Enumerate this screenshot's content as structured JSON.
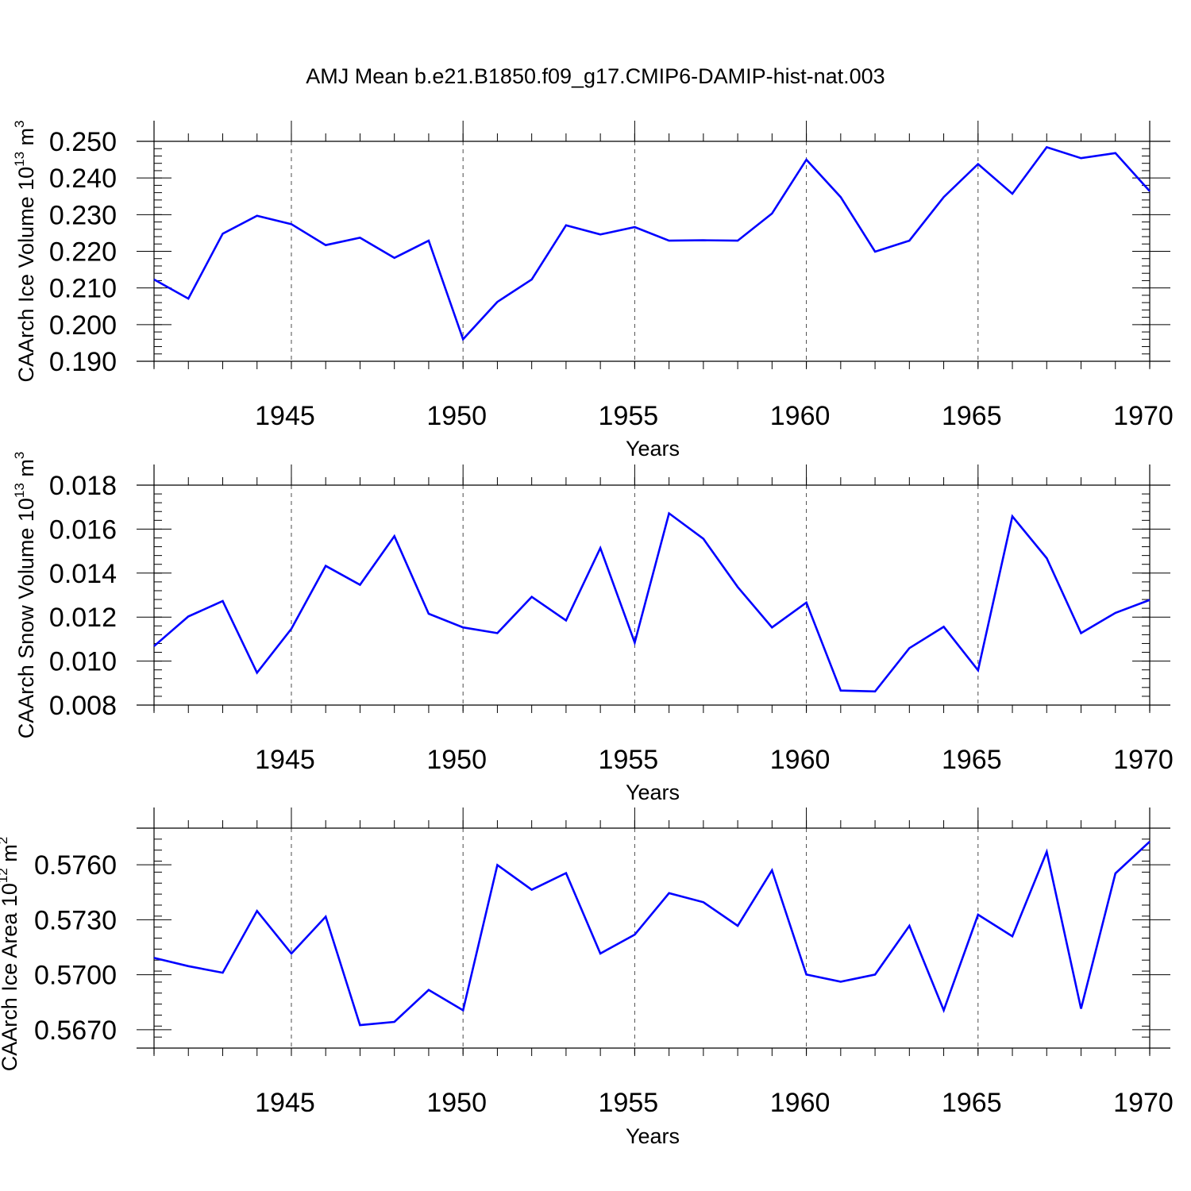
{
  "title": "AMJ Mean b.e21.B1850.f09_g17.CMIP6-DAMIP-hist-nat.003",
  "colors": {
    "line": "#0000ff",
    "frame": "#000000"
  },
  "chart_data": [
    {
      "type": "line",
      "name": "ice-volume",
      "ylabel": "CAArch Ice Volume 10",
      "ylabel_sup1": "13",
      "ylabel_unit": " m",
      "ylabel_sup2": "3",
      "xlabel": "Years",
      "xlim": [
        1941,
        1970
      ],
      "ylim": [
        0.19,
        0.25
      ],
      "yticks": [
        0.19,
        0.2,
        0.21,
        0.22,
        0.23,
        0.24,
        0.25
      ],
      "ytick_labels": [
        "0.190",
        "0.200",
        "0.210",
        "0.220",
        "0.230",
        "0.240",
        "0.250"
      ],
      "yminor": 0.002,
      "xticks": [
        1945,
        1950,
        1955,
        1960,
        1965,
        1970
      ],
      "xtick_labels": [
        "1945",
        "1950",
        "1955",
        "1960",
        "1965",
        "1970"
      ],
      "x": [
        1941,
        1942,
        1943,
        1944,
        1945,
        1946,
        1947,
        1948,
        1949,
        1950,
        1951,
        1952,
        1953,
        1954,
        1955,
        1956,
        1957,
        1958,
        1959,
        1960,
        1961,
        1962,
        1963,
        1964,
        1965,
        1966,
        1967,
        1968,
        1969,
        1970
      ],
      "values": [
        0.2123,
        0.2071,
        0.2248,
        0.2297,
        0.2274,
        0.2217,
        0.2237,
        0.2182,
        0.2229,
        0.196,
        0.2062,
        0.2123,
        0.2271,
        0.2246,
        0.2266,
        0.2229,
        0.223,
        0.2229,
        0.2303,
        0.245,
        0.2348,
        0.2199,
        0.2229,
        0.2348,
        0.2438,
        0.2357,
        0.2484,
        0.2454,
        0.2468,
        0.2364
      ]
    },
    {
      "type": "line",
      "name": "snow-volume",
      "ylabel": "CAArch Snow Volume 10",
      "ylabel_sup1": "13",
      "ylabel_unit": " m",
      "ylabel_sup2": "3",
      "xlabel": "Years",
      "xlim": [
        1941,
        1970
      ],
      "ylim": [
        0.008,
        0.018
      ],
      "yticks": [
        0.008,
        0.01,
        0.012,
        0.014,
        0.016,
        0.018
      ],
      "ytick_labels": [
        "0.008",
        "0.010",
        "0.012",
        "0.014",
        "0.016",
        "0.018"
      ],
      "yminor": 0.0004,
      "xticks": [
        1945,
        1950,
        1955,
        1960,
        1965,
        1970
      ],
      "xtick_labels": [
        "1945",
        "1950",
        "1955",
        "1960",
        "1965",
        "1970"
      ],
      "x": [
        1941,
        1942,
        1943,
        1944,
        1945,
        1946,
        1947,
        1948,
        1949,
        1950,
        1951,
        1952,
        1953,
        1954,
        1955,
        1956,
        1957,
        1958,
        1959,
        1960,
        1961,
        1962,
        1963,
        1964,
        1965,
        1966,
        1967,
        1968,
        1969,
        1970
      ],
      "values": [
        0.01068,
        0.01203,
        0.01273,
        0.00947,
        0.01147,
        0.01433,
        0.01347,
        0.01568,
        0.01215,
        0.01153,
        0.01127,
        0.01292,
        0.01185,
        0.01514,
        0.01084,
        0.01672,
        0.01556,
        0.01337,
        0.01153,
        0.01266,
        0.00866,
        0.00862,
        0.01059,
        0.01156,
        0.00958,
        0.01658,
        0.01468,
        0.01127,
        0.01219,
        0.01278
      ]
    },
    {
      "type": "line",
      "name": "ice-area",
      "ylabel": "CAArch Ice Area 10",
      "ylabel_sup1": "12",
      "ylabel_unit": " m",
      "ylabel_sup2": "2",
      "xlabel": "Years",
      "xlim": [
        1941,
        1970
      ],
      "ylim": [
        0.566,
        0.578
      ],
      "yticks": [
        0.567,
        0.57,
        0.573,
        0.576
      ],
      "ytick_labels": [
        "0.5670",
        "0.5700",
        "0.5730",
        "0.5760"
      ],
      "yminor": 0.0006,
      "xticks": [
        1945,
        1950,
        1955,
        1960,
        1965,
        1970
      ],
      "xtick_labels": [
        "1945",
        "1950",
        "1955",
        "1960",
        "1965",
        "1970"
      ],
      "x": [
        1941,
        1942,
        1943,
        1944,
        1945,
        1946,
        1947,
        1948,
        1949,
        1950,
        1951,
        1952,
        1953,
        1954,
        1955,
        1956,
        1957,
        1958,
        1959,
        1960,
        1961,
        1962,
        1963,
        1964,
        1965,
        1966,
        1967,
        1968,
        1969,
        1970
      ],
      "values": [
        0.57092,
        0.57047,
        0.57011,
        0.57348,
        0.57116,
        0.57317,
        0.56725,
        0.56743,
        0.56917,
        0.56806,
        0.57599,
        0.57464,
        0.57555,
        0.57116,
        0.57219,
        0.57445,
        0.57396,
        0.57267,
        0.5757,
        0.57001,
        0.56962,
        0.57001,
        0.57267,
        0.56806,
        0.57328,
        0.5721,
        0.57671,
        0.56815,
        0.57553,
        0.57727
      ]
    }
  ]
}
